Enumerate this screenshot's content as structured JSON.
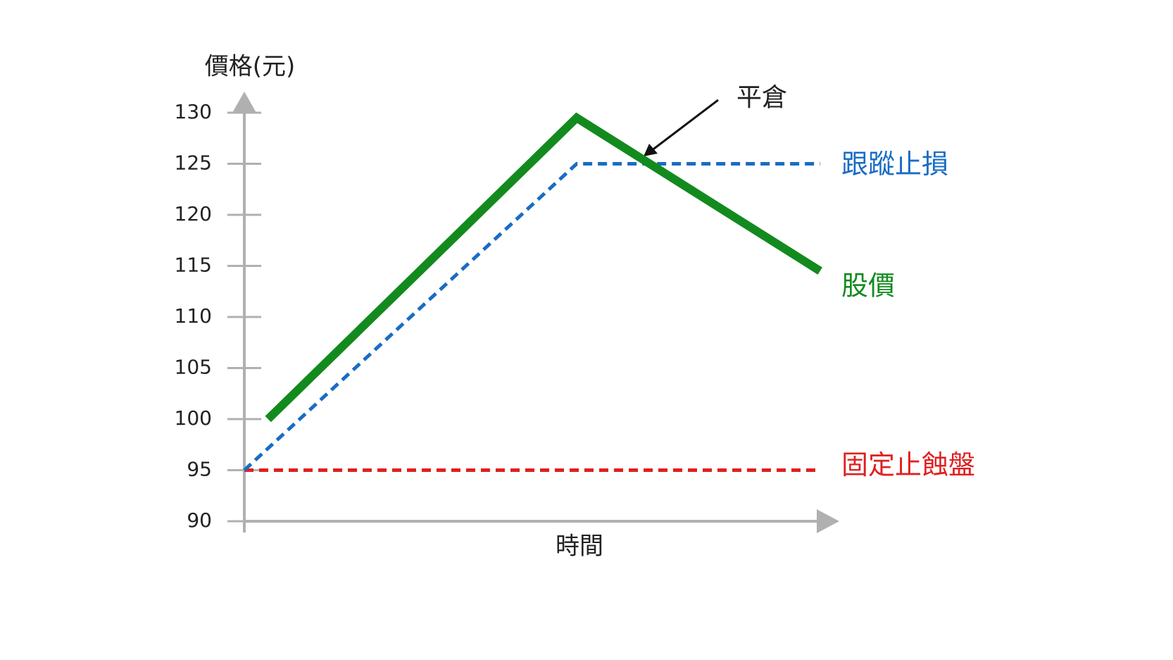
{
  "chart_data": {
    "type": "line",
    "ylabel": "價格(元)",
    "xlabel": "時間",
    "annotation": "平倉",
    "xlim": [
      0,
      100
    ],
    "ylim": [
      90,
      130
    ],
    "yticks": [
      90,
      95,
      100,
      105,
      110,
      115,
      120,
      125,
      130
    ],
    "series": [
      {
        "name": "股價",
        "color": "#138a1e",
        "dash": false,
        "x": [
          4,
          56,
          97
        ],
        "values": [
          100,
          129.5,
          114.5
        ]
      },
      {
        "name": "跟蹤止損",
        "color": "#1a6cc4",
        "dash": true,
        "x": [
          0,
          56,
          97
        ],
        "values": [
          95,
          125,
          125
        ]
      },
      {
        "name": "固定止蝕盤",
        "color": "#e02020",
        "dash": true,
        "x": [
          0,
          97
        ],
        "values": [
          95,
          95
        ]
      }
    ]
  }
}
